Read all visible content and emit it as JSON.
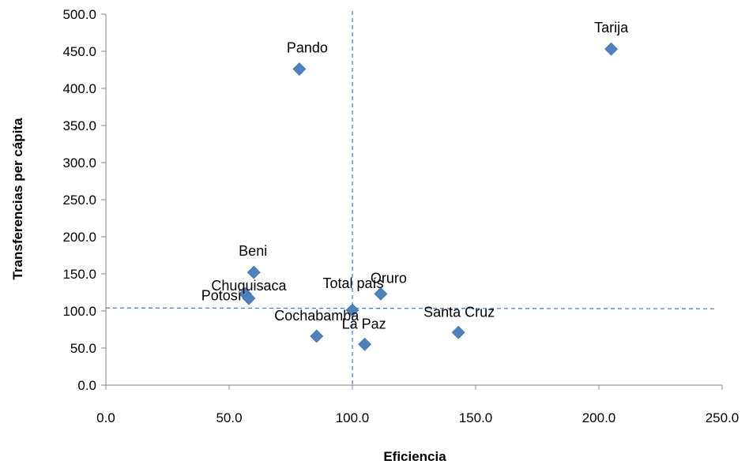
{
  "chart_data": {
    "type": "scatter",
    "title": "",
    "xlabel": "Eficiencia",
    "ylabel": "Transferencias per cápita",
    "xlim": [
      0,
      250
    ],
    "ylim": [
      0,
      500
    ],
    "x_ticks": [
      "0.0",
      "50.0",
      "100.0",
      "150.0",
      "200.0",
      "250.0"
    ],
    "y_ticks": [
      "0.0",
      "50.0",
      "100.0",
      "150.0",
      "200.0",
      "250.0",
      "300.0",
      "350.0",
      "400.0",
      "450.0",
      "500.0"
    ],
    "grid": false,
    "marker": "diamond",
    "marker_color": "#4F81BD",
    "reference_line_color": "#4F81BD",
    "reference_lines": {
      "x": 100,
      "y": 104
    },
    "points": [
      {
        "label": "Tarija",
        "x": 205,
        "y": 453
      },
      {
        "label": "Pando",
        "x": 78.5,
        "y": 426
      },
      {
        "label": "Beni",
        "x": 60,
        "y": 152
      },
      {
        "label": "Potosí",
        "x": 56.5,
        "y": 123
      },
      {
        "label": "Chuquisaca",
        "x": 58,
        "y": 117
      },
      {
        "label": "Oruro",
        "x": 111.5,
        "y": 123
      },
      {
        "label": "Total país",
        "x": 100,
        "y": 101
      },
      {
        "label": "Cochabamba",
        "x": 85.5,
        "y": 66
      },
      {
        "label": "La Paz",
        "x": 105,
        "y": 55
      },
      {
        "label": "Santa Cruz",
        "x": 143,
        "y": 71
      }
    ]
  }
}
